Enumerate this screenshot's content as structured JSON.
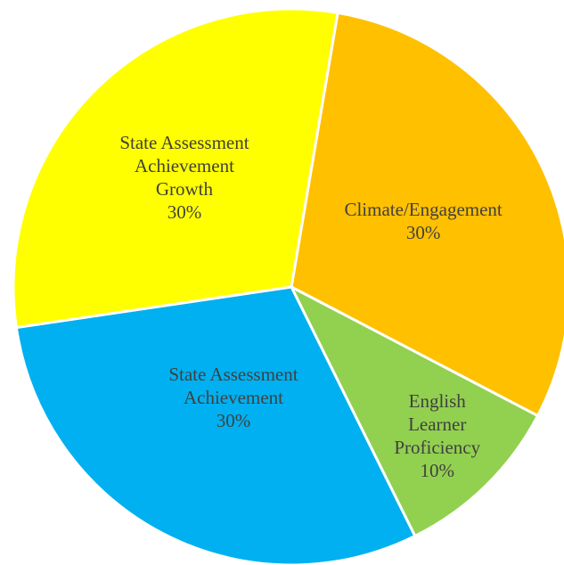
{
  "chart_data": {
    "type": "pie",
    "categories": [
      "Climate/Engagement",
      "English Learner Proficiency",
      "State Assessment Achievement",
      "State Assessment Achievement Growth"
    ],
    "values": [
      30,
      10,
      30,
      30
    ],
    "value_labels": [
      "30%",
      "10%",
      "30%",
      "30%"
    ],
    "colors": [
      "#FFC000",
      "#92D050",
      "#00B0F0",
      "#FFFF00"
    ]
  }
}
